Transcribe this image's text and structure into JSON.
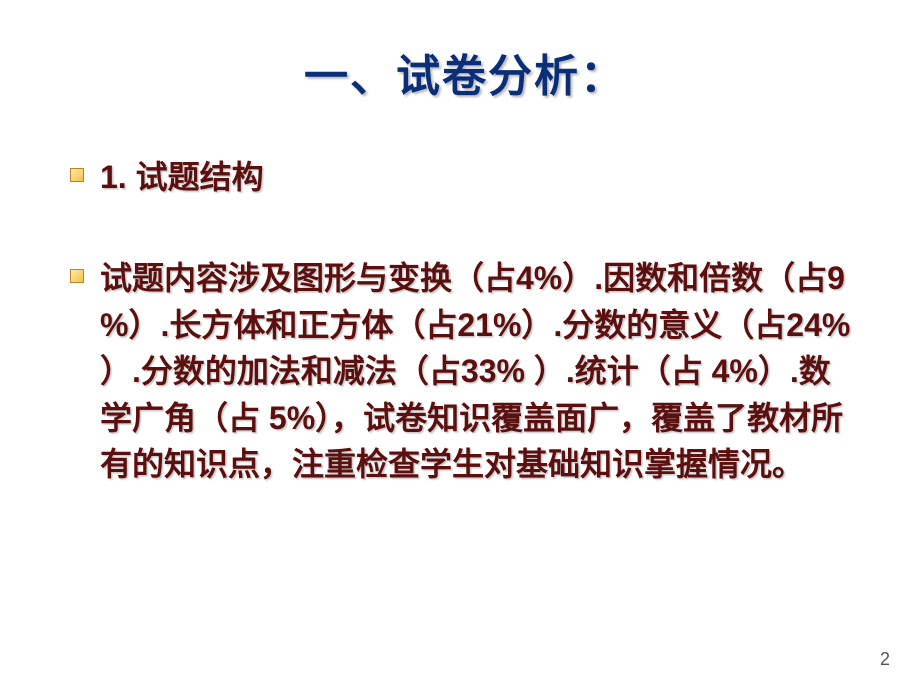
{
  "slide": {
    "title": "一、试卷分析：",
    "title_color": "#0a2e78",
    "bullets": [
      {
        "text": "1. 试题结构",
        "color": "#5b0f0f"
      },
      {
        "text": "试题内容涉及图形与变换（占4%）.因数和倍数（占9 %）.长方体和正方体（占21%）.分数的意义（占24% ）.分数的加法和减法（占33% ）.统计（占 4%）.数学广角（占 5%），试卷知识覆盖面广，覆盖了教材所有的知识点，注重检查学生对基础知识掌握情况。",
        "color": "#5b0f0f"
      }
    ],
    "bullet_marker": {
      "border_color": "#b9852a",
      "fill_start": "#ffe9a8",
      "fill_end": "#f4c04a"
    },
    "page_number": "2",
    "background_color": "#ffffff",
    "title_fontsize": 44,
    "body_fontsize": 32
  }
}
